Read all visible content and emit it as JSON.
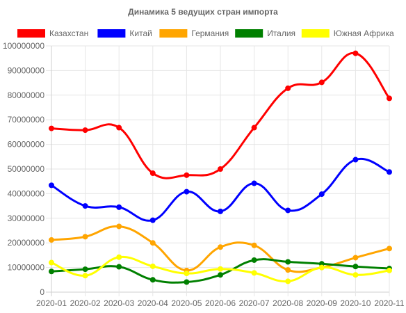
{
  "chart_data": {
    "type": "line",
    "title": "Динамика 5 ведущих стран импорта",
    "xlabel": "",
    "ylabel": "",
    "categories": [
      "2020-01",
      "2020-02",
      "2020-03",
      "2020-04",
      "2020-05",
      "2020-06",
      "2020-07",
      "2020-08",
      "2020-09",
      "2020-10",
      "2020-11"
    ],
    "ylim": [
      0,
      100000000
    ],
    "yticks": [
      "0",
      "10000000",
      "20000000",
      "30000000",
      "40000000",
      "50000000",
      "60000000",
      "70000000",
      "80000000",
      "90000000",
      "100000000"
    ],
    "grid": true,
    "legend_position": "top",
    "series": [
      {
        "name": "Казахстан",
        "color": "#ff0000",
        "values": [
          66500000,
          65800000,
          66800000,
          48300000,
          47500000,
          50000000,
          66800000,
          82800000,
          85200000,
          97000000,
          78700000
        ]
      },
      {
        "name": "Китай",
        "color": "#0000ff",
        "values": [
          43400000,
          35000000,
          34500000,
          29200000,
          40800000,
          32800000,
          44200000,
          33200000,
          39800000,
          53800000,
          48800000
        ]
      },
      {
        "name": "Германия",
        "color": "#ffa500",
        "values": [
          21200000,
          22500000,
          26700000,
          20000000,
          8800000,
          18300000,
          19000000,
          9000000,
          10000000,
          14000000,
          17700000
        ]
      },
      {
        "name": "Италия",
        "color": "#008000",
        "values": [
          8400000,
          9300000,
          10300000,
          5000000,
          4100000,
          7000000,
          13000000,
          12300000,
          11500000,
          10400000,
          9600000
        ]
      },
      {
        "name": "Южная Африка",
        "color": "#ffff00",
        "values": [
          12000000,
          6700000,
          14200000,
          10500000,
          7600000,
          9400000,
          7800000,
          4400000,
          10000000,
          7000000,
          8800000
        ]
      }
    ]
  }
}
